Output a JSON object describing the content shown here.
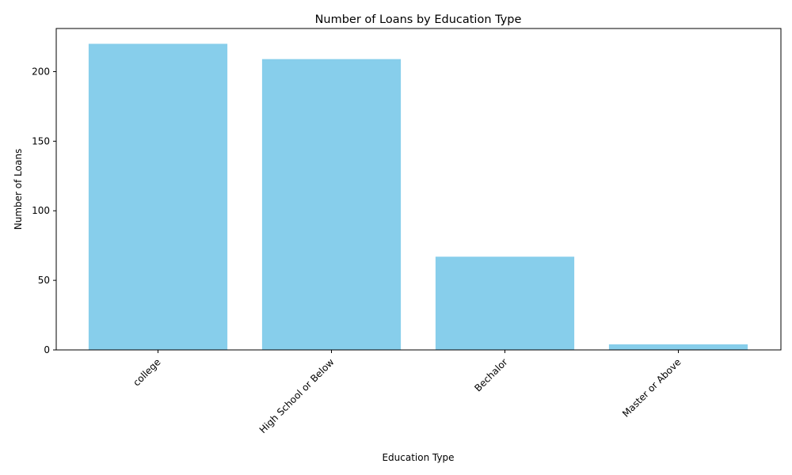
{
  "chart_data": {
    "type": "bar",
    "title": "Number of Loans by Education Type",
    "xlabel": "Education Type",
    "ylabel": "Number of Loans",
    "categories": [
      "college",
      "High School or Below",
      "Bechalor",
      "Master or Above"
    ],
    "values": [
      220,
      209,
      67,
      4
    ],
    "ylim": [
      0,
      231
    ],
    "yticks": [
      0,
      50,
      100,
      150,
      200
    ],
    "bar_color": "#87CEEB",
    "grid": false,
    "legend": "none"
  }
}
